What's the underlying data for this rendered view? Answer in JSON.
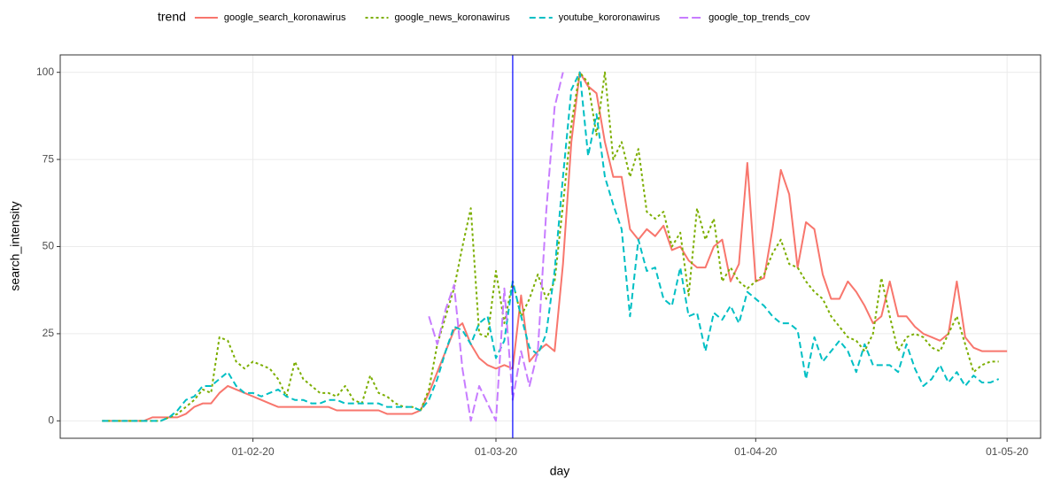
{
  "chart_data": {
    "type": "line",
    "x_label": "day",
    "y_label": "search_intensity",
    "legend_title": "trend",
    "legend_position": "top",
    "grid": true,
    "xlim": [
      "2020-01-09",
      "2020-05-05"
    ],
    "xticks": [
      {
        "value": "2020-02-01",
        "label": "01-02-20"
      },
      {
        "value": "2020-03-01",
        "label": "01-03-20"
      },
      {
        "value": "2020-04-01",
        "label": "01-04-20"
      },
      {
        "value": "2020-05-01",
        "label": "01-05-20"
      }
    ],
    "ylim": [
      -5,
      105
    ],
    "yticks": [
      0,
      25,
      50,
      75,
      100
    ],
    "vline": {
      "x": "2020-03-03",
      "color": "#0000ff"
    },
    "x": [
      "2020-01-14",
      "2020-01-15",
      "2020-01-16",
      "2020-01-17",
      "2020-01-18",
      "2020-01-19",
      "2020-01-20",
      "2020-01-21",
      "2020-01-22",
      "2020-01-23",
      "2020-01-24",
      "2020-01-25",
      "2020-01-26",
      "2020-01-27",
      "2020-01-28",
      "2020-01-29",
      "2020-01-30",
      "2020-01-31",
      "2020-02-01",
      "2020-02-02",
      "2020-02-03",
      "2020-02-04",
      "2020-02-05",
      "2020-02-06",
      "2020-02-07",
      "2020-02-08",
      "2020-02-09",
      "2020-02-10",
      "2020-02-11",
      "2020-02-12",
      "2020-02-13",
      "2020-02-14",
      "2020-02-15",
      "2020-02-16",
      "2020-02-17",
      "2020-02-18",
      "2020-02-19",
      "2020-02-20",
      "2020-02-21",
      "2020-02-22",
      "2020-02-23",
      "2020-02-24",
      "2020-02-25",
      "2020-02-26",
      "2020-02-27",
      "2020-02-28",
      "2020-02-29",
      "2020-03-01",
      "2020-03-02",
      "2020-03-03",
      "2020-03-04",
      "2020-03-05",
      "2020-03-06",
      "2020-03-07",
      "2020-03-08",
      "2020-03-09",
      "2020-03-10",
      "2020-03-11",
      "2020-03-12",
      "2020-03-13",
      "2020-03-14",
      "2020-03-15",
      "2020-03-16",
      "2020-03-17",
      "2020-03-18",
      "2020-03-19",
      "2020-03-20",
      "2020-03-21",
      "2020-03-22",
      "2020-03-23",
      "2020-03-24",
      "2020-03-25",
      "2020-03-26",
      "2020-03-27",
      "2020-03-28",
      "2020-03-29",
      "2020-03-30",
      "2020-03-31",
      "2020-04-01",
      "2020-04-02",
      "2020-04-03",
      "2020-04-04",
      "2020-04-05",
      "2020-04-06",
      "2020-04-07",
      "2020-04-08",
      "2020-04-09",
      "2020-04-10",
      "2020-04-11",
      "2020-04-12",
      "2020-04-13",
      "2020-04-14",
      "2020-04-15",
      "2020-04-16",
      "2020-04-17",
      "2020-04-18",
      "2020-04-19",
      "2020-04-20",
      "2020-04-21",
      "2020-04-22",
      "2020-04-23",
      "2020-04-24",
      "2020-04-25",
      "2020-04-26",
      "2020-04-27",
      "2020-04-28",
      "2020-04-29",
      "2020-04-30",
      "2020-05-01"
    ],
    "series": [
      {
        "name": "google_search_koronawirus",
        "color": "#F8766D",
        "linetype": "solid",
        "values": [
          0,
          0,
          0,
          0,
          0,
          0,
          1,
          1,
          1,
          1,
          2,
          4,
          5,
          5,
          8,
          10,
          9,
          8,
          7,
          6,
          5,
          4,
          4,
          4,
          4,
          4,
          4,
          4,
          3,
          3,
          3,
          3,
          3,
          3,
          2,
          2,
          2,
          2,
          3,
          8,
          14,
          20,
          26,
          28,
          22,
          18,
          16,
          15,
          16,
          15,
          36,
          17,
          20,
          22,
          20,
          45,
          80,
          100,
          96,
          94,
          80,
          70,
          70,
          55,
          52,
          55,
          53,
          56,
          49,
          50,
          46,
          44,
          44,
          50,
          52,
          40,
          45,
          74,
          40,
          41,
          55,
          72,
          65,
          44,
          57,
          55,
          42,
          35,
          35,
          40,
          37,
          33,
          28,
          30,
          40,
          30,
          30,
          27,
          25,
          24,
          23,
          25,
          40,
          24,
          21,
          20,
          20,
          20,
          20
        ]
      },
      {
        "name": "google_news_koronawirus",
        "color": "#7CAE00",
        "linetype": "dotted",
        "values": [
          0,
          0,
          0,
          0,
          0,
          0,
          0,
          0,
          1,
          2,
          4,
          6,
          9,
          8,
          24,
          23,
          17,
          15,
          17,
          16,
          15,
          12,
          7,
          17,
          12,
          10,
          8,
          8,
          7,
          10,
          6,
          5,
          13,
          8,
          7,
          5,
          4,
          4,
          3,
          9,
          22,
          30,
          38,
          50,
          61,
          25,
          24,
          43,
          28,
          40,
          30,
          35,
          42,
          35,
          40,
          62,
          85,
          100,
          97,
          82,
          100,
          75,
          80,
          70,
          78,
          60,
          58,
          60,
          50,
          54,
          36,
          61,
          52,
          58,
          40,
          44,
          40,
          38,
          40,
          42,
          48,
          52,
          45,
          44,
          40,
          37,
          35,
          30,
          27,
          24,
          23,
          20,
          25,
          41,
          30,
          20,
          24,
          25,
          24,
          21,
          20,
          25,
          30,
          22,
          14,
          16,
          17,
          17,
          null
        ]
      },
      {
        "name": "youtube_kororonawirus",
        "color": "#00BFC4",
        "linetype": "dashed",
        "values": [
          0,
          0,
          0,
          0,
          0,
          0,
          0,
          0,
          1,
          3,
          6,
          7,
          10,
          10,
          12,
          14,
          10,
          8,
          8,
          7,
          8,
          9,
          7,
          6,
          6,
          5,
          5,
          6,
          6,
          5,
          5,
          5,
          5,
          5,
          4,
          4,
          4,
          4,
          3,
          6,
          12,
          20,
          27,
          26,
          22,
          28,
          30,
          18,
          23,
          40,
          30,
          21,
          19,
          25,
          43,
          70,
          95,
          100,
          76,
          88,
          70,
          62,
          55,
          30,
          52,
          43,
          44,
          35,
          33,
          44,
          30,
          31,
          20,
          31,
          29,
          33,
          28,
          37,
          35,
          33,
          30,
          28,
          28,
          26,
          12,
          24,
          17,
          20,
          23,
          20,
          14,
          22,
          16,
          16,
          16,
          14,
          22,
          15,
          10,
          12,
          16,
          11,
          14,
          10,
          13,
          11,
          11,
          12,
          null
        ]
      },
      {
        "name": "google_top_trends_cov",
        "color": "#C77CFF",
        "linetype": "longdash",
        "values": [
          null,
          null,
          null,
          null,
          null,
          null,
          null,
          null,
          null,
          null,
          null,
          null,
          null,
          null,
          null,
          null,
          null,
          null,
          null,
          null,
          null,
          null,
          null,
          null,
          null,
          null,
          null,
          null,
          null,
          null,
          null,
          null,
          null,
          null,
          null,
          null,
          null,
          null,
          null,
          30,
          22,
          32,
          39,
          15,
          0,
          10,
          5,
          0,
          38,
          6,
          20,
          10,
          20,
          60,
          90,
          100,
          null,
          null,
          null,
          null,
          null,
          null,
          null,
          null,
          null,
          null,
          null,
          null,
          null,
          null,
          null,
          null,
          null,
          null,
          null,
          null,
          null,
          null,
          null,
          null,
          null,
          null,
          null,
          null,
          null,
          null,
          null,
          null,
          null,
          null,
          null,
          null,
          null,
          null,
          null,
          null,
          null,
          null,
          null,
          null,
          null,
          null,
          null,
          null,
          null,
          null,
          null,
          null,
          null
        ]
      }
    ]
  }
}
